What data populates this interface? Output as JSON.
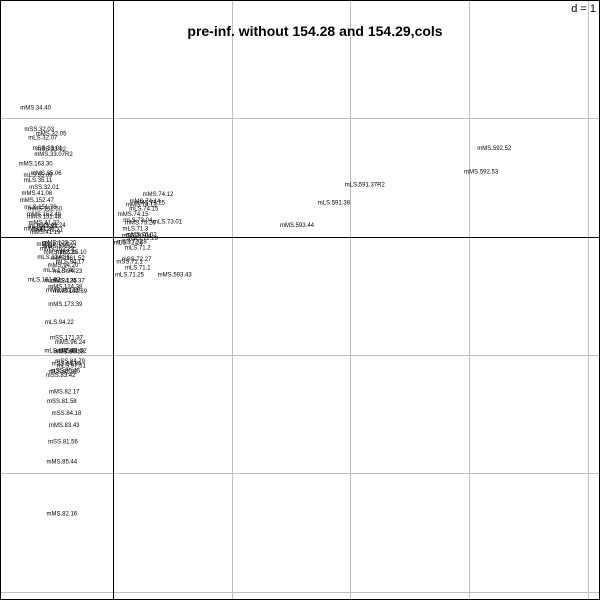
{
  "chart_data": {
    "type": "scatter",
    "title": "pre-inf. without 154.28 and 154.29,cols",
    "grid_label": "d = 1",
    "xlim": [
      -0.95,
      4.1
    ],
    "ylim": [
      -3.07,
      2.0
    ],
    "grid": true,
    "colors": {
      "axis": "#000000",
      "grid": "#c0c0c0",
      "text": "#000000"
    },
    "points": [
      {
        "label": "mMS.34.40",
        "x": -0.65,
        "y": 1.09
      },
      {
        "label": "mSS.32.03",
        "x": -0.62,
        "y": 0.91
      },
      {
        "label": "mMS.32.05",
        "x": -0.52,
        "y": 0.87
      },
      {
        "label": "mLS.32.07",
        "x": -0.59,
        "y": 0.84
      },
      {
        "label": "mSS.33.01",
        "x": -0.55,
        "y": 0.75
      },
      {
        "label": "mSS.33.02",
        "x": -0.52,
        "y": 0.74
      },
      {
        "label": "mMS.33.07R2",
        "x": -0.5,
        "y": 0.7
      },
      {
        "label": "mMS.163.30",
        "x": -0.65,
        "y": 0.62
      },
      {
        "label": "mMS.35.06",
        "x": -0.56,
        "y": 0.54
      },
      {
        "label": "mLS.35.09",
        "x": -0.63,
        "y": 0.52
      },
      {
        "label": "mLS.35.11",
        "x": -0.63,
        "y": 0.48
      },
      {
        "label": "mSS.32.01",
        "x": -0.58,
        "y": 0.42
      },
      {
        "label": "mMS.41.08",
        "x": -0.64,
        "y": 0.37
      },
      {
        "label": "mMS.152.47",
        "x": -0.64,
        "y": 0.31
      },
      {
        "label": "mLS.151.78",
        "x": -0.61,
        "y": 0.25
      },
      {
        "label": "mMS.152.50",
        "x": -0.57,
        "y": 0.24
      },
      {
        "label": "mMS.152.49",
        "x": -0.58,
        "y": 0.19
      },
      {
        "label": "mMS.152.48",
        "x": -0.58,
        "y": 0.17
      },
      {
        "label": "mMS.41.22",
        "x": -0.58,
        "y": 0.12
      },
      {
        "label": "mLS.41.24",
        "x": -0.52,
        "y": 0.1
      },
      {
        "label": "mLS.41.23",
        "x": -0.59,
        "y": 0.09
      },
      {
        "label": "mMS.41.20",
        "x": -0.62,
        "y": 0.07
      },
      {
        "label": "mMS.41.21",
        "x": -0.55,
        "y": 0.06
      },
      {
        "label": "mMS.41.19",
        "x": -0.57,
        "y": 0.04
      },
      {
        "label": "mMS.123.20",
        "x": -0.45,
        "y": -0.05
      },
      {
        "label": "mMS.172.21",
        "x": -0.5,
        "y": -0.06
      },
      {
        "label": "mMS.172.22",
        "x": -0.45,
        "y": -0.08
      },
      {
        "label": "mMS.162.23",
        "x": -0.47,
        "y": -0.1
      },
      {
        "label": "mMS.162.21",
        "x": -0.44,
        "y": -0.13
      },
      {
        "label": "mMS.85.10",
        "x": -0.35,
        "y": -0.13
      },
      {
        "label": "mLS.124.36",
        "x": -0.5,
        "y": -0.17
      },
      {
        "label": "mMS.161.52",
        "x": -0.38,
        "y": -0.18
      },
      {
        "label": "mLS.94.17",
        "x": -0.36,
        "y": -0.21
      },
      {
        "label": "mMS.94.20",
        "x": -0.42,
        "y": -0.24
      },
      {
        "label": "mLS.175.42",
        "x": -0.45,
        "y": -0.28
      },
      {
        "label": "mLS.94.23",
        "x": -0.38,
        "y": -0.29
      },
      {
        "label": "mLS.161.32",
        "x": -0.58,
        "y": -0.36
      },
      {
        "label": "mLS.124.35",
        "x": -0.44,
        "y": -0.37
      },
      {
        "label": "mMS.124.37",
        "x": -0.38,
        "y": -0.37
      },
      {
        "label": "mMS.124.38",
        "x": -0.4,
        "y": -0.42
      },
      {
        "label": "mMS.162.59",
        "x": -0.42,
        "y": -0.45
      },
      {
        "label": "mMS.162.69",
        "x": -0.36,
        "y": -0.46
      },
      {
        "label": "mMS.173.39",
        "x": -0.4,
        "y": -0.57
      },
      {
        "label": "mLS.94.22",
        "x": -0.45,
        "y": -0.72
      },
      {
        "label": "mSS.171.37",
        "x": -0.39,
        "y": -0.85
      },
      {
        "label": "mMS.96.24",
        "x": -0.36,
        "y": -0.89
      },
      {
        "label": "mLS.162.60",
        "x": -0.44,
        "y": -0.96
      },
      {
        "label": "mMS.81.52",
        "x": -0.35,
        "y": -0.96
      },
      {
        "label": "mMS.80.58",
        "x": -0.37,
        "y": -0.97
      },
      {
        "label": "mSS.84.79",
        "x": -0.36,
        "y": -1.05
      },
      {
        "label": "mSS.84.80",
        "x": -0.39,
        "y": -1.07
      },
      {
        "label": "mLS.97.51",
        "x": -0.35,
        "y": -1.09
      },
      {
        "label": "mSS.85.45",
        "x": -0.4,
        "y": -1.13
      },
      {
        "label": "mLS.82.32",
        "x": -0.42,
        "y": -1.14
      },
      {
        "label": "mSS.83.42",
        "x": -0.44,
        "y": -1.17
      },
      {
        "label": "mMS.82.17",
        "x": -0.41,
        "y": -1.31
      },
      {
        "label": "mSS.81.58",
        "x": -0.43,
        "y": -1.39
      },
      {
        "label": "mSS.84.18",
        "x": -0.39,
        "y": -1.49
      },
      {
        "label": "mMS.83.43",
        "x": -0.41,
        "y": -1.59
      },
      {
        "label": "mSS.81.56",
        "x": -0.42,
        "y": -1.73
      },
      {
        "label": "mMS.85.44",
        "x": -0.43,
        "y": -1.9
      },
      {
        "label": "mMS.82.16",
        "x": -0.43,
        "y": -2.34
      },
      {
        "label": "mMS.74.12",
        "x": 0.38,
        "y": 0.36
      },
      {
        "label": "mMS.74.14",
        "x": 0.27,
        "y": 0.3
      },
      {
        "label": "mMS.75.25",
        "x": 0.31,
        "y": 0.29
      },
      {
        "label": "mMS.74.13",
        "x": 0.24,
        "y": 0.27
      },
      {
        "label": "mLS.74.15",
        "x": 0.26,
        "y": 0.24
      },
      {
        "label": "mMS.74.15",
        "x": 0.17,
        "y": 0.19
      },
      {
        "label": "mLS.73.04",
        "x": 0.21,
        "y": 0.14
      },
      {
        "label": "mMS.75.26",
        "x": 0.23,
        "y": 0.12
      },
      {
        "label": "mLS.73.01",
        "x": 0.46,
        "y": 0.13
      },
      {
        "label": "mLS.71.3",
        "x": 0.19,
        "y": 0.07
      },
      {
        "label": "mMS.70.02",
        "x": 0.24,
        "y": 0.02
      },
      {
        "label": "mSS.70.04",
        "x": 0.2,
        "y": 0.01
      },
      {
        "label": "mMS.72.29",
        "x": 0.25,
        "y": -0.01
      },
      {
        "label": "mSS.72.28",
        "x": 0.16,
        "y": -0.04
      },
      {
        "label": "mLS.72.26",
        "x": 0.13,
        "y": -0.05
      },
      {
        "label": "mLS.71.2",
        "x": 0.21,
        "y": -0.09
      },
      {
        "label": "mSS.72.27",
        "x": 0.2,
        "y": -0.19
      },
      {
        "label": "mSS.71.1",
        "x": 0.14,
        "y": -0.21
      },
      {
        "label": "mLS.71.1",
        "x": 0.21,
        "y": -0.26
      },
      {
        "label": "mLS.71.25",
        "x": 0.14,
        "y": -0.32
      },
      {
        "label": "mMS.593.43",
        "x": 0.52,
        "y": -0.32
      },
      {
        "label": "mMS.593.44",
        "x": 1.55,
        "y": 0.1
      },
      {
        "label": "mLS.591.38",
        "x": 1.86,
        "y": 0.29
      },
      {
        "label": "mLS.591.37R2",
        "x": 2.12,
        "y": 0.44
      },
      {
        "label": "mMS.592.52",
        "x": 3.21,
        "y": 0.75
      },
      {
        "label": "mMS.592.53",
        "x": 3.1,
        "y": 0.55
      }
    ]
  }
}
